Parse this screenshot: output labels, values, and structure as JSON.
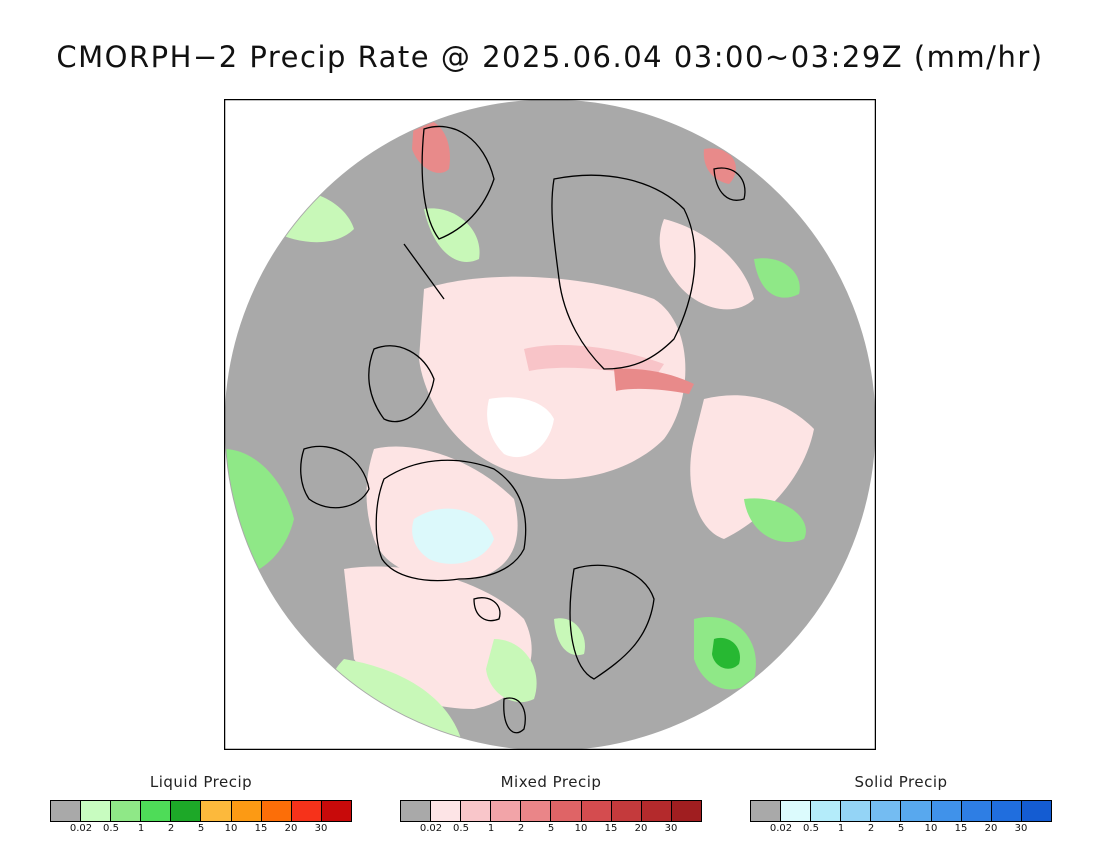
{
  "title": "CMORPH−2 Precip Rate @ 2025.06.04 03:00~03:29Z (mm/hr)",
  "map": {
    "projection": "north-polar-stereographic",
    "colors": {
      "no_data_gray": "#a9a9a9",
      "frame": "#000000",
      "coast": "#000000",
      "liquid_light": "#c8f8b8",
      "liquid_mid": "#8fe887",
      "liquid_heavy": "#27b832",
      "mixed_light": "#fde4e4",
      "mixed_mid": "#f8c4c8",
      "mixed_heavy": "#e88a8a",
      "solid_light": "#dcf9fb"
    }
  },
  "legends": [
    {
      "title": "Liquid Precip",
      "colors": [
        "#a9a9a9",
        "#c8fcc0",
        "#8fe887",
        "#4edc58",
        "#1da828",
        "#fcb93c",
        "#fc9a14",
        "#fc6e08",
        "#f6321a",
        "#c80a0a"
      ],
      "ticks": [
        "0.02",
        "0.5",
        "1",
        "2",
        "5",
        "10",
        "15",
        "20",
        "30"
      ]
    },
    {
      "title": "Mixed Precip",
      "colors": [
        "#a9a9a9",
        "#fde4e6",
        "#f9c6ca",
        "#f2a4a8",
        "#ea8588",
        "#df6466",
        "#d44c4f",
        "#c43a3c",
        "#b42a2c",
        "#a01e20"
      ],
      "ticks": [
        "0.02",
        "0.5",
        "1",
        "2",
        "5",
        "10",
        "15",
        "20",
        "30"
      ]
    },
    {
      "title": "Solid Precip",
      "colors": [
        "#a9a9a9",
        "#dcfbfd",
        "#b4ecfa",
        "#94d4f6",
        "#74bcf2",
        "#58a8ee",
        "#4092ea",
        "#2e7ee4",
        "#206ede",
        "#145cd2"
      ],
      "ticks": [
        "0.02",
        "0.5",
        "1",
        "2",
        "5",
        "10",
        "15",
        "20",
        "30"
      ]
    }
  ]
}
